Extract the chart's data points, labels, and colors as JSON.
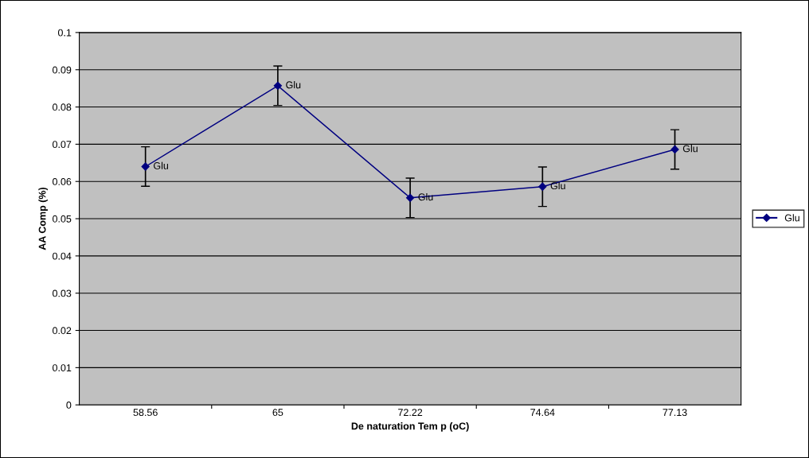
{
  "chart_data": {
    "type": "line",
    "xlabel": "De naturation Tem p (oC)",
    "ylabel": "AA Comp (%)",
    "categories": [
      "58.56",
      "65",
      "72.22",
      "74.64",
      "77.13"
    ],
    "series": [
      {
        "name": "Glu",
        "color": "#000080",
        "values": [
          0.064,
          0.0857,
          0.0556,
          0.0586,
          0.0686
        ],
        "errors": [
          0.0053,
          0.0053,
          0.0053,
          0.0053,
          0.0053
        ]
      }
    ],
    "annotations": [
      {
        "text": "Glu",
        "x": "58.56",
        "y": 0.064
      },
      {
        "text": "Glu",
        "x": "65",
        "y": 0.0857
      },
      {
        "text": "Glu",
        "x": "72.22",
        "y": 0.0556
      },
      {
        "text": "Glu",
        "x": "74.64",
        "y": 0.0586
      },
      {
        "text": "Glu",
        "x": "77.13",
        "y": 0.0686
      }
    ],
    "ylim": [
      0,
      0.1
    ],
    "yticks": [
      0,
      0.01,
      0.02,
      0.03,
      0.04,
      0.05,
      0.06,
      0.07,
      0.08,
      0.09,
      0.1
    ],
    "grid": "y",
    "legend": "right",
    "marker": "diamond",
    "line_style": "solid"
  }
}
